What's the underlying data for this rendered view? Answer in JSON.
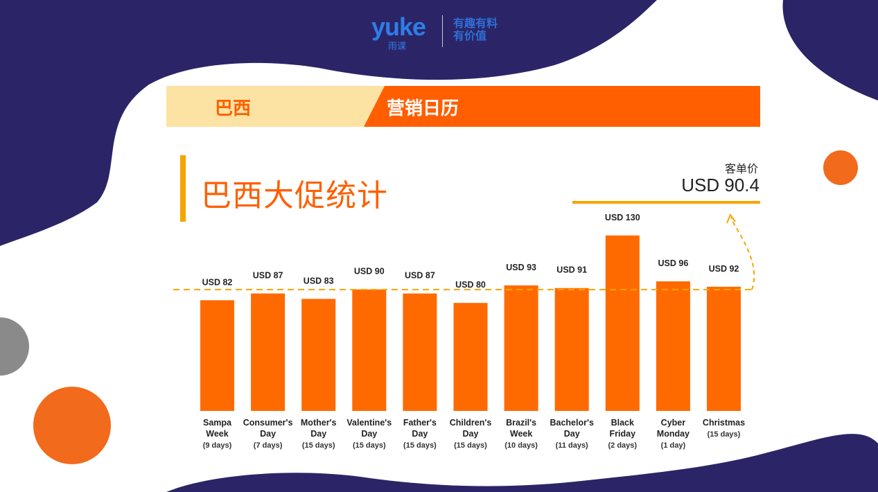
{
  "logo": {
    "brand": "yuke",
    "sub": "雨课",
    "slogan": "有趣有料 有价值"
  },
  "banner": {
    "left": "巴西",
    "right": "营销日历"
  },
  "page_title": "巴西大促统计",
  "aov": {
    "label": "客单价",
    "value": "USD 90.4"
  },
  "colors": {
    "bar": "#ff6a00",
    "accent": "#f7a400",
    "navy": "#2b2567",
    "orange_circle": "#f26a1b",
    "gray_circle": "#8a8a8a"
  },
  "chart_data": {
    "type": "bar",
    "categories": [
      {
        "name": [
          "Sampa",
          "Week"
        ],
        "duration": "(9 days)"
      },
      {
        "name": [
          "Consumer's",
          "Day"
        ],
        "duration": "(7 days)"
      },
      {
        "name": [
          "Mother's",
          "Day"
        ],
        "duration": "(15 days)"
      },
      {
        "name": [
          "Valentine's",
          "Day"
        ],
        "duration": "(15 days)"
      },
      {
        "name": [
          "Father's",
          "Day"
        ],
        "duration": "(15 days)"
      },
      {
        "name": [
          "Children's",
          "Day"
        ],
        "duration": "(15 days)"
      },
      {
        "name": [
          "Brazil's",
          "Week"
        ],
        "duration": "(10 days)"
      },
      {
        "name": [
          "Bachelor's",
          "Day"
        ],
        "duration": "(11 days)"
      },
      {
        "name": [
          "Black",
          "Friday"
        ],
        "duration": "(2 days)"
      },
      {
        "name": [
          "Cyber",
          "Monday"
        ],
        "duration": "(1 day)"
      },
      {
        "name": [
          "Christmas"
        ],
        "duration": "(15 days)"
      }
    ],
    "values": [
      82,
      87,
      83,
      90,
      87,
      80,
      93,
      91,
      130,
      96,
      92
    ],
    "value_labels": [
      "USD 82",
      "USD 87",
      "USD 83",
      "USD 90",
      "USD 87",
      "USD 80",
      "USD 93",
      "USD 91",
      "USD 130",
      "USD 96",
      "USD 92"
    ],
    "reference_line": 90.4
  }
}
